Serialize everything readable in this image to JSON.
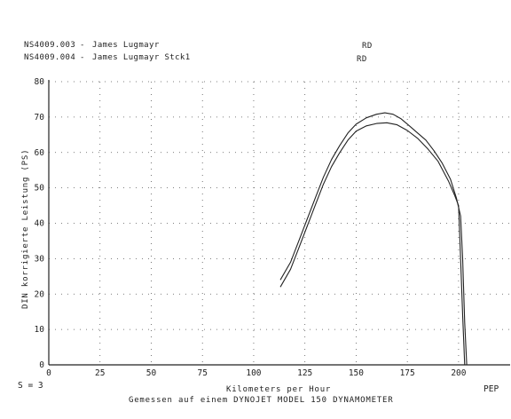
{
  "header": {
    "runs": [
      {
        "file": "NS4009.003",
        "name": "James Lugmayr",
        "tag": "RD"
      },
      {
        "file": "NS4009.004",
        "name": "James Lugmayr Stck1",
        "tag": "RD"
      }
    ]
  },
  "footer": {
    "s_label": "S = 3",
    "unit_right": "PEP",
    "source": "Gemessen auf einem DYNOJET MODEL 150 DYNAMOMETER"
  },
  "chart_data": {
    "type": "line",
    "xlabel": "Kilometers per Hour",
    "ylabel": "DIN korrigierte Leistung (PS)",
    "xlim": [
      0,
      210
    ],
    "ylim": [
      0,
      80
    ],
    "xticks": [
      0,
      25,
      50,
      75,
      100,
      125,
      150,
      175,
      200
    ],
    "yticks": [
      0,
      10,
      20,
      30,
      40,
      50,
      60,
      70,
      80
    ],
    "grid": true,
    "series": [
      {
        "name": "NS4009.003",
        "color": "#222222",
        "x": [
          113,
          118,
          122,
          126,
          130,
          134,
          138,
          142,
          146,
          150,
          155,
          160,
          164,
          168,
          172,
          176,
          180,
          184,
          188,
          192,
          196,
          199,
          201,
          202,
          203,
          204
        ],
        "y": [
          24,
          29,
          35,
          41,
          47,
          53,
          58,
          62,
          65.5,
          68,
          69.8,
          70.8,
          71.2,
          70.8,
          69.5,
          67.5,
          65.5,
          63.5,
          60.5,
          57,
          52.5,
          47,
          42,
          30,
          12,
          0
        ]
      },
      {
        "name": "NS4009.004",
        "color": "#222222",
        "x": [
          113,
          118,
          122,
          126,
          130,
          134,
          138,
          142,
          146,
          150,
          155,
          160,
          165,
          170,
          175,
          180,
          185,
          190,
          195,
          198,
          200,
          201,
          202,
          203
        ],
        "y": [
          22,
          27,
          33,
          39,
          45,
          51,
          56,
          60,
          63.5,
          66,
          67.5,
          68.2,
          68.4,
          67.8,
          66.2,
          64,
          61,
          57.5,
          52,
          48,
          45,
          30,
          14,
          0
        ]
      }
    ]
  }
}
